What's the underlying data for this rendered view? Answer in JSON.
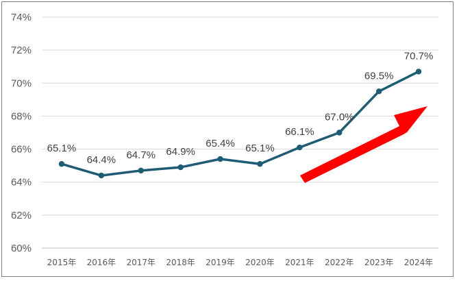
{
  "chart_data": {
    "type": "line",
    "title": "",
    "xlabel": "",
    "ylabel": "",
    "categories": [
      "2015年",
      "2016年",
      "2017年",
      "2018年",
      "2019年",
      "2020年",
      "2021年",
      "2022年",
      "2023年",
      "2024年"
    ],
    "series": [
      {
        "values": [
          65.1,
          64.4,
          64.7,
          64.9,
          65.4,
          65.1,
          66.1,
          67.0,
          69.5,
          70.7
        ],
        "data_labels": [
          "65.1%",
          "64.4%",
          "64.7%",
          "64.9%",
          "65.4%",
          "65.1%",
          "66.1%",
          "67.0%",
          "69.5%",
          "70.7%"
        ],
        "color": "#1f5b74"
      }
    ],
    "ylim": [
      60,
      74
    ],
    "y_ticks": [
      60,
      62,
      64,
      66,
      68,
      70,
      72,
      74
    ],
    "y_tick_labels": [
      "60%",
      "62%",
      "64%",
      "66%",
      "68%",
      "70%",
      "72%",
      "74%"
    ],
    "grid": true,
    "legend": "none",
    "annotation": {
      "shape": "arrow",
      "direction": "up-right",
      "color": "#ff0000"
    }
  }
}
